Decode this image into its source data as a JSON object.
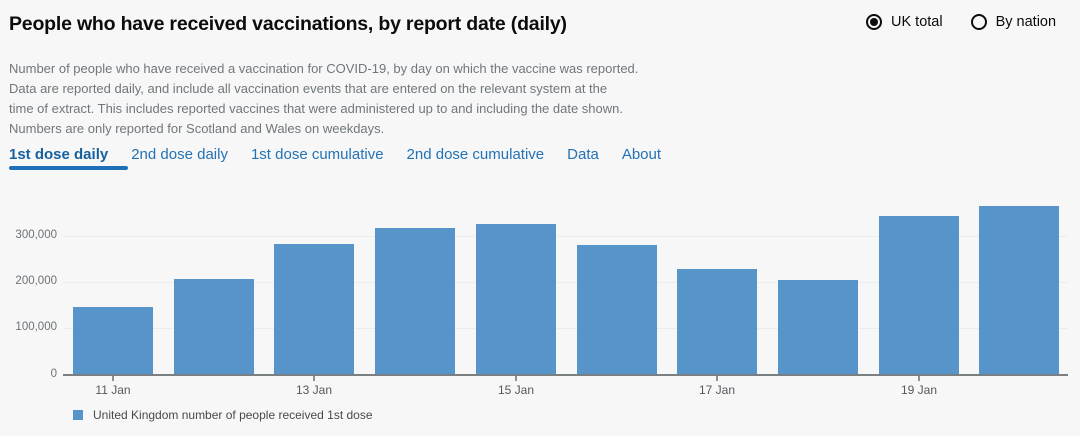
{
  "header": {
    "title": "People who have received vaccinations, by report date (daily)",
    "radios": [
      {
        "label": "UK total",
        "selected": true
      },
      {
        "label": "By nation",
        "selected": false
      }
    ]
  },
  "description_lines": [
    "Number of people who have received a vaccination for COVID-19, by day on which the vaccine was reported.",
    "Data are reported daily, and include all vaccination events that are entered on the relevant system at the",
    "time of extract. This includes reported vaccines that were administered up to and including the date shown.",
    "Numbers are only reported for Scotland and Wales on weekdays."
  ],
  "tabs": [
    {
      "label": "1st dose daily",
      "active": true
    },
    {
      "label": "2nd dose daily",
      "active": false
    },
    {
      "label": "1st dose cumulative",
      "active": false
    },
    {
      "label": "2nd dose cumulative",
      "active": false
    },
    {
      "label": "Data",
      "active": false
    },
    {
      "label": "About",
      "active": false
    }
  ],
  "chart_data": {
    "type": "bar",
    "title": "People who have received vaccinations, by report date (daily)",
    "categories": [
      "11 Jan",
      "12 Jan",
      "13 Jan",
      "14 Jan",
      "15 Jan",
      "16 Jan",
      "17 Jan",
      "18 Jan",
      "19 Jan",
      "20 Jan"
    ],
    "values": [
      145000,
      207000,
      281000,
      317000,
      325000,
      279000,
      227000,
      204000,
      343000,
      365000
    ],
    "series_name": "United Kingdom number of people received 1st dose",
    "xlabel": "",
    "ylabel": "",
    "ylim": [
      0,
      388000
    ],
    "y_ticks": [
      0,
      100000,
      200000,
      300000
    ],
    "y_tick_labels": [
      "0",
      "100,000",
      "200,000",
      "300,000"
    ],
    "x_tick_indices": [
      0,
      2,
      4,
      6,
      8
    ],
    "x_tick_labels": [
      "11 Jan",
      "13 Jan",
      "15 Jan",
      "17 Jan",
      "19 Jan"
    ],
    "grid": "horizontal",
    "legend_position": "bottom-left",
    "bar_color": "#5694ca"
  },
  "legend": {
    "label": "United Kingdom number of people received 1st dose",
    "swatch_color": "#5694ca"
  },
  "colors": {
    "background": "#f7f7f8",
    "accent_blue": "#1d70b8",
    "bar_blue": "#5694ca",
    "secondary_text": "#6f777b"
  }
}
